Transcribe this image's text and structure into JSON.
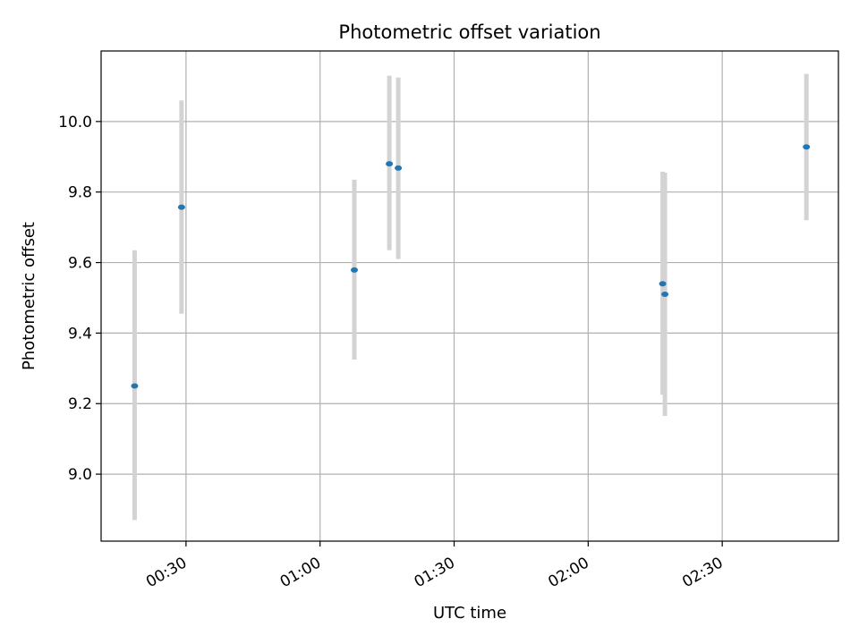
{
  "chart_data": {
    "type": "scatter",
    "title": "Photometric offset variation",
    "xlabel": "UTC time",
    "ylabel": "Photometric offset",
    "grid": true,
    "xlim": [
      "00:11",
      "02:56"
    ],
    "ylim": [
      8.81,
      10.2
    ],
    "x_ticks": [
      "00:30",
      "01:00",
      "01:30",
      "02:00",
      "02:30"
    ],
    "y_ticks": [
      "9.0",
      "9.2",
      "9.4",
      "9.6",
      "9.8",
      "10.0"
    ],
    "colors": {
      "point": "#1f77b4",
      "errorbar": "#d3d3d3",
      "grid": "#b0b0b0"
    },
    "series": [
      {
        "points": [
          {
            "x": "00:18:30",
            "y": 9.25,
            "err_low": 8.87,
            "err_high": 9.635
          },
          {
            "x": "00:29:00",
            "y": 9.757,
            "err_low": 9.455,
            "err_high": 10.06
          },
          {
            "x": "01:07:40",
            "y": 9.579,
            "err_low": 9.325,
            "err_high": 9.835
          },
          {
            "x": "01:15:30",
            "y": 9.88,
            "err_low": 9.635,
            "err_high": 10.13
          },
          {
            "x": "01:17:30",
            "y": 9.868,
            "err_low": 9.61,
            "err_high": 10.125
          },
          {
            "x": "02:16:40",
            "y": 9.54,
            "err_low": 9.225,
            "err_high": 9.858
          },
          {
            "x": "02:17:10",
            "y": 9.51,
            "err_low": 9.165,
            "err_high": 9.855
          },
          {
            "x": "02:48:50",
            "y": 9.928,
            "err_low": 9.72,
            "err_high": 10.135
          }
        ]
      }
    ]
  }
}
